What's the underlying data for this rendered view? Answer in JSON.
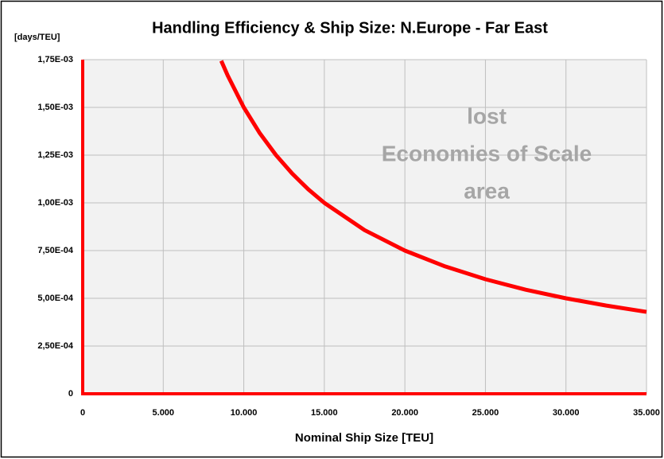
{
  "chart_data": {
    "type": "line",
    "title": "Handling Efficiency & Ship Size: N.Europe - Far East",
    "y_unit_label": "[days/TEU]",
    "x_label": "Nominal Ship Size [TEU]",
    "annotation": [
      "lost",
      "Economies of Scale",
      "area"
    ],
    "x": [
      8600,
      9000,
      10000,
      11000,
      12000,
      13000,
      14000,
      15000,
      17500,
      20000,
      22500,
      25000,
      27500,
      30000,
      32500,
      35000
    ],
    "values": [
      0.001744,
      0.001667,
      0.0015,
      0.001364,
      0.00125,
      0.001154,
      0.001071,
      0.001,
      0.000857,
      0.00075,
      0.000667,
      0.0006,
      0.000545,
      0.0005,
      0.000462,
      0.000429
    ],
    "color": "#ff0000",
    "xlim": [
      0,
      35000
    ],
    "ylim": [
      0,
      0.00175
    ],
    "xticks": [
      0,
      {
        "value": 5000,
        "label": "5.000"
      },
      {
        "value": 10000,
        "label": "10.000"
      },
      {
        "value": 15000,
        "label": "15.000"
      },
      {
        "value": 20000,
        "label": "20.000"
      },
      {
        "value": 25000,
        "label": "25.000"
      },
      {
        "value": 30000,
        "label": "30.000"
      },
      {
        "value": 35000,
        "label": "35.000"
      }
    ],
    "yticks": [
      0,
      {
        "value": 0.00025,
        "label": "2,50E-04"
      },
      {
        "value": 0.0005,
        "label": "5,00E-04"
      },
      {
        "value": 0.00075,
        "label": "7,50E-04"
      },
      {
        "value": 0.001,
        "label": "1,00E-03"
      },
      {
        "value": 0.00125,
        "label": "1,25E-03"
      },
      {
        "value": 0.0015,
        "label": "1,50E-03"
      },
      {
        "value": 0.00175,
        "label": "1,75E-03"
      }
    ],
    "grid": true
  }
}
